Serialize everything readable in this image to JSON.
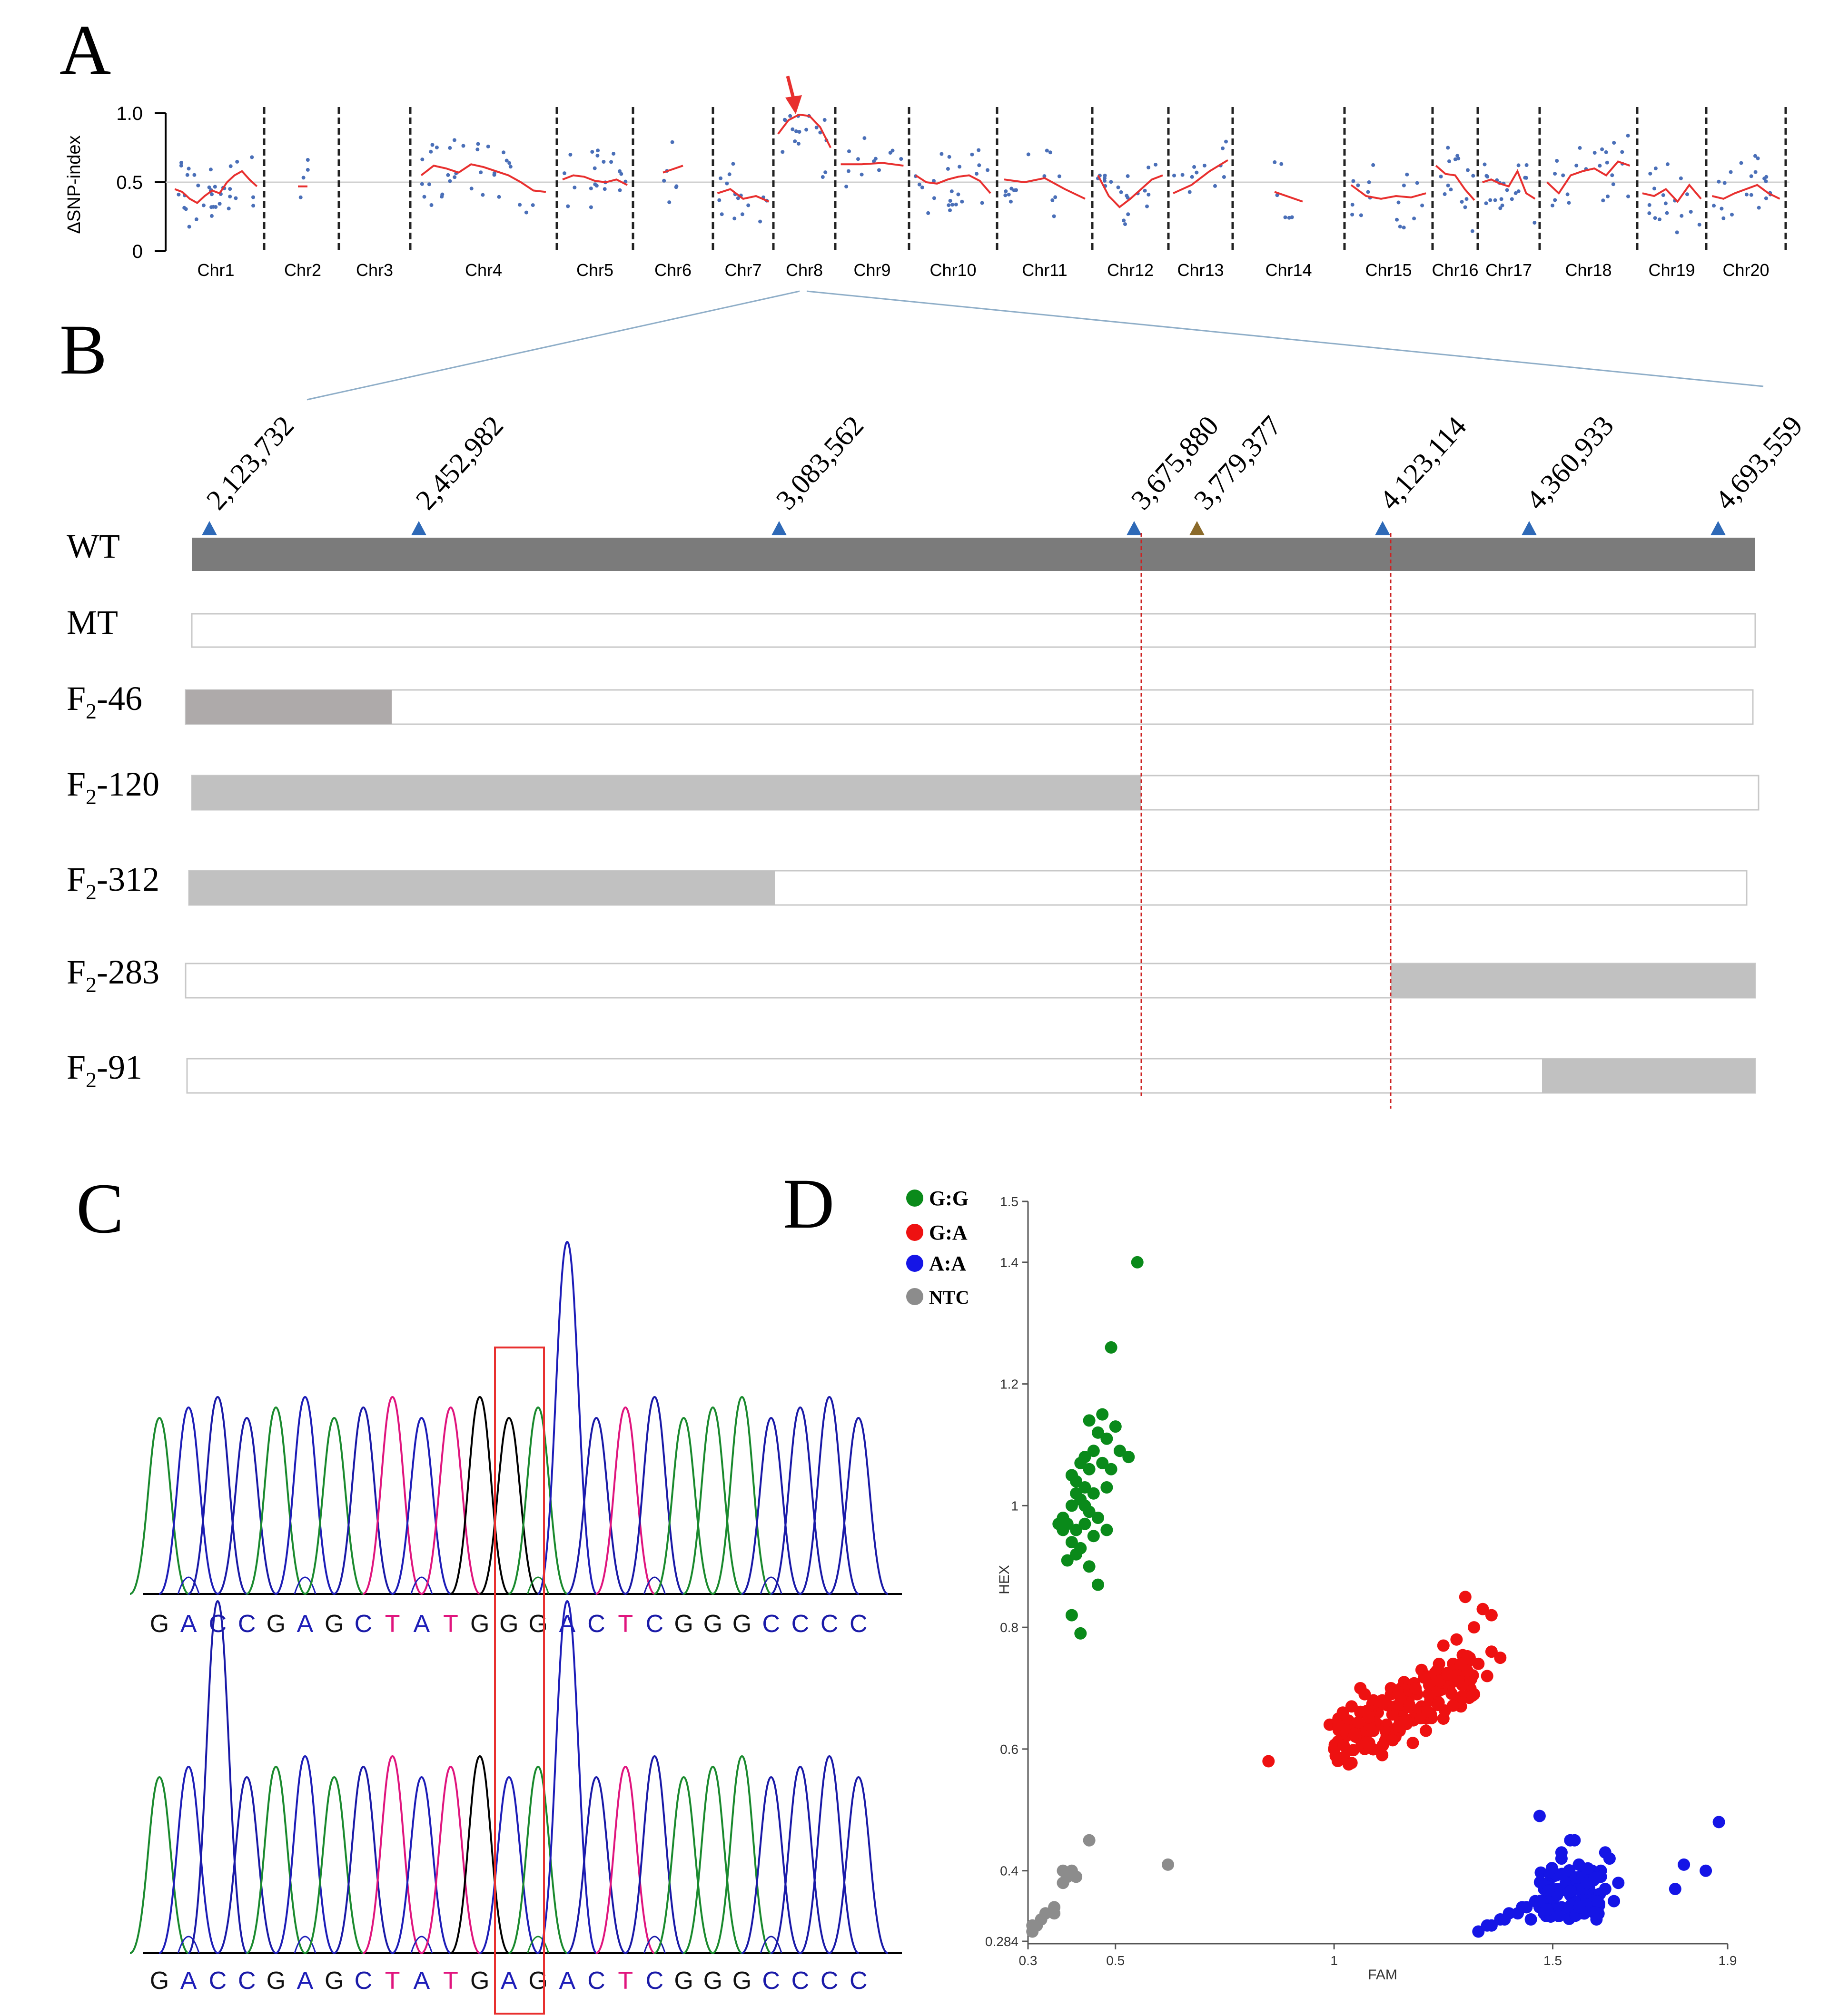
{
  "panels": {
    "a": "A",
    "b": "B",
    "c": "C",
    "d": "D"
  },
  "colors": {
    "trend": "#e8302f",
    "snp_dot": "#4a6fb8",
    "wt_bar": "#7b7b7b",
    "f2_46_bar": "#aeaaaa",
    "recomb_bar": "#c1c1c1",
    "marker": "#2e69b7",
    "marker_candidate": "#8b6a2a",
    "peak_G": "#1a8a2e",
    "peak_A": "#1d1db8",
    "peak_C": "#1a1aa8",
    "peak_T": "#e0157e",
    "peak_black": "#000000",
    "cluster_GG": "#0a8a1a",
    "cluster_GA": "#ee1111",
    "cluster_AA": "#1515e6",
    "cluster_NTC": "#8c8c8c"
  },
  "chart_data": [
    {
      "id": "A",
      "type": "line",
      "title": "",
      "ylabel": "ΔSNP-index",
      "xlabel": "",
      "ylim": [
        0,
        1.0
      ],
      "yticks": [
        "1.0",
        "0.5",
        "0"
      ],
      "chromosomes": [
        "Chr1",
        "Chr2",
        "Chr3",
        "Chr4",
        "Chr5",
        "Chr6",
        "Chr7",
        "Chr8",
        "Chr9",
        "Chr10",
        "Chr11",
        "Chr12",
        "Chr13",
        "Chr14",
        "Chr15",
        "Chr16",
        "Chr17",
        "Chr18",
        "Chr19",
        "Chr20"
      ],
      "reference_line": 0.5,
      "series": [
        {
          "name": "Chr1",
          "values": [
            0.45,
            0.43,
            0.38,
            0.35,
            0.4,
            0.44,
            0.42,
            0.5,
            0.55,
            0.58,
            0.52,
            0.47
          ]
        },
        {
          "name": "Chr2",
          "values": [
            0.47
          ]
        },
        {
          "name": "Chr4",
          "values": [
            0.55,
            0.62,
            0.6,
            0.57,
            0.63,
            0.61,
            0.58,
            0.55,
            0.5,
            0.44,
            0.43
          ]
        },
        {
          "name": "Chr5",
          "values": [
            0.52,
            0.55,
            0.54,
            0.51,
            0.5,
            0.52,
            0.48
          ]
        },
        {
          "name": "Chr6",
          "values": [
            0.57,
            0.62
          ]
        },
        {
          "name": "Chr7",
          "values": [
            0.42,
            0.45,
            0.38,
            0.4,
            0.36
          ]
        },
        {
          "name": "Chr8",
          "values": [
            0.85,
            0.95,
            0.99,
            0.98,
            0.9,
            0.75
          ]
        },
        {
          "name": "Chr9",
          "values": [
            0.63,
            0.63,
            0.64,
            0.62
          ]
        },
        {
          "name": "Chr10",
          "values": [
            0.55,
            0.5,
            0.49,
            0.52,
            0.54,
            0.55,
            0.51,
            0.42
          ]
        },
        {
          "name": "Chr11",
          "values": [
            0.52,
            0.5,
            0.53,
            0.45,
            0.38
          ]
        },
        {
          "name": "Chr12",
          "values": [
            0.55,
            0.4,
            0.32,
            0.38,
            0.45,
            0.52,
            0.55
          ]
        },
        {
          "name": "Chr13",
          "values": [
            0.42,
            0.48,
            0.58,
            0.66
          ]
        },
        {
          "name": "Chr14",
          "values": [
            0.43,
            0.36
          ]
        },
        {
          "name": "Chr15",
          "values": [
            0.48,
            0.4,
            0.38,
            0.4,
            0.39,
            0.42
          ]
        },
        {
          "name": "Chr16",
          "values": [
            0.62,
            0.56,
            0.55,
            0.45,
            0.37
          ]
        },
        {
          "name": "Chr17",
          "values": [
            0.5,
            0.52,
            0.49,
            0.47,
            0.58,
            0.42,
            0.38
          ]
        },
        {
          "name": "Chr18",
          "values": [
            0.5,
            0.42,
            0.55,
            0.58,
            0.6,
            0.55,
            0.65,
            0.62
          ]
        },
        {
          "name": "Chr19",
          "values": [
            0.42,
            0.4,
            0.45,
            0.36,
            0.48,
            0.38
          ]
        },
        {
          "name": "Chr20",
          "values": [
            0.4,
            0.38,
            0.42,
            0.45,
            0.48,
            0.42,
            0.38
          ]
        }
      ],
      "annotation": "arrow pointing to Chr8 peak"
    },
    {
      "id": "D",
      "type": "scatter",
      "xlabel": "FAM",
      "ylabel": "HEX",
      "xlim": [
        0.3,
        1.9
      ],
      "ylim": [
        0.284,
        1.5
      ],
      "xticks": [
        "0.3",
        "0.5",
        "1",
        "1.5",
        "1.9"
      ],
      "yticks": [
        "1.5",
        "1.4",
        "1.2",
        "1",
        "0.8",
        "0.6",
        "0.4",
        "0.284"
      ],
      "legend": [
        "G:G",
        "G:A",
        "A:A",
        "NTC"
      ],
      "legend_position": "top-left",
      "series": [
        {
          "name": "G:G",
          "x": [
            0.55,
            0.49,
            0.5,
            0.47,
            0.44,
            0.46,
            0.48,
            0.51,
            0.53,
            0.45,
            0.43,
            0.42,
            0.44,
            0.47,
            0.49,
            0.4,
            0.41,
            0.43,
            0.45,
            0.48,
            0.42,
            0.4,
            0.44,
            0.46,
            0.38,
            0.39,
            0.41,
            0.43,
            0.45,
            0.4,
            0.42,
            0.38,
            0.44,
            0.48,
            0.39,
            0.41,
            0.4,
            0.42,
            0.43,
            0.37,
            0.46,
            0.41,
            0.4
          ],
          "y": [
            1.4,
            1.26,
            1.13,
            1.15,
            1.14,
            1.12,
            1.11,
            1.09,
            1.08,
            1.09,
            1.08,
            1.07,
            1.06,
            1.07,
            1.06,
            1.05,
            1.04,
            1.03,
            1.02,
            1.03,
            1.01,
            1.0,
            0.99,
            0.98,
            0.98,
            0.97,
            0.96,
            0.97,
            0.95,
            0.94,
            0.93,
            0.96,
            0.9,
            0.96,
            0.91,
            0.92,
            0.82,
            0.79,
            1.0,
            0.97,
            0.87,
            1.02,
            1.05
          ]
        },
        {
          "name": "G:A",
          "x": [
            0.85,
            1.0,
            1.02,
            1.05,
            1.08,
            1.1,
            1.12,
            1.15,
            1.18,
            1.2,
            1.03,
            1.06,
            1.09,
            1.11,
            1.14,
            1.16,
            1.19,
            1.22,
            1.25,
            1.27,
            1.01,
            1.04,
            1.07,
            1.1,
            1.13,
            1.17,
            1.21,
            1.24,
            1.28,
            1.31,
            1.05,
            1.08,
            1.12,
            1.15,
            1.19,
            1.22,
            1.26,
            1.3,
            1.33,
            1.36,
            1.07,
            1.11,
            1.14,
            1.18,
            1.21,
            1.25,
            1.29,
            1.32,
            1.35,
            1.38,
            1.28,
            1.32,
            1.36,
            1.3,
            1.34,
            1.25,
            1.2,
            1.16,
            1.13,
            1.09,
            1.06,
            1.02,
            0.99
          ],
          "y": [
            0.58,
            0.6,
            0.62,
            0.63,
            0.61,
            0.64,
            0.62,
            0.66,
            0.65,
            0.67,
            0.64,
            0.66,
            0.63,
            0.68,
            0.67,
            0.7,
            0.69,
            0.71,
            0.7,
            0.72,
            0.65,
            0.67,
            0.69,
            0.66,
            0.7,
            0.68,
            0.72,
            0.74,
            0.73,
            0.75,
            0.62,
            0.61,
            0.64,
            0.63,
            0.66,
            0.68,
            0.7,
            0.71,
            0.74,
            0.76,
            0.6,
            0.59,
            0.62,
            0.61,
            0.63,
            0.65,
            0.67,
            0.69,
            0.72,
            0.75,
            0.78,
            0.8,
            0.82,
            0.85,
            0.83,
            0.77,
            0.73,
            0.71,
            0.69,
            0.68,
            0.7,
            0.66,
            0.64
          ]
        },
        {
          "name": "A:A",
          "x": [
            1.47,
            1.55,
            1.62,
            1.35,
            1.38,
            1.4,
            1.43,
            1.45,
            1.48,
            1.5,
            1.52,
            1.54,
            1.56,
            1.58,
            1.6,
            1.62,
            1.49,
            1.51,
            1.53,
            1.55,
            1.57,
            1.59,
            1.46,
            1.48,
            1.5,
            1.52,
            1.54,
            1.56,
            1.58,
            1.61,
            1.63,
            1.47,
            1.49,
            1.51,
            1.53,
            1.55,
            1.57,
            1.59,
            1.52,
            1.54,
            1.56,
            1.5,
            1.53,
            1.55,
            1.57,
            1.6,
            1.64,
            1.78,
            1.8,
            1.85,
            1.88,
            1.44,
            1.42,
            1.39,
            1.36,
            1.33,
            1.58,
            1.61,
            1.65,
            1.51
          ],
          "y": [
            0.49,
            0.45,
            0.43,
            0.31,
            0.32,
            0.33,
            0.34,
            0.32,
            0.33,
            0.35,
            0.34,
            0.36,
            0.35,
            0.34,
            0.36,
            0.37,
            0.38,
            0.37,
            0.39,
            0.38,
            0.36,
            0.4,
            0.35,
            0.37,
            0.4,
            0.42,
            0.39,
            0.41,
            0.38,
            0.4,
            0.42,
            0.34,
            0.36,
            0.33,
            0.37,
            0.34,
            0.38,
            0.36,
            0.43,
            0.45,
            0.41,
            0.39,
            0.38,
            0.35,
            0.33,
            0.32,
            0.35,
            0.37,
            0.41,
            0.4,
            0.48,
            0.34,
            0.33,
            0.32,
            0.31,
            0.3,
            0.4,
            0.39,
            0.38,
            0.36
          ]
        },
        {
          "name": "NTC",
          "x": [
            0.31,
            0.32,
            0.33,
            0.34,
            0.36,
            0.36,
            0.38,
            0.39,
            0.4,
            0.41,
            0.44,
            0.62,
            0.38,
            0.31
          ],
          "y": [
            0.3,
            0.31,
            0.32,
            0.33,
            0.33,
            0.34,
            0.38,
            0.39,
            0.4,
            0.39,
            0.45,
            0.41,
            0.4,
            0.31
          ]
        }
      ]
    }
  ],
  "markers": {
    "labels": [
      "2,123,732",
      "2,452,982",
      "3,083,562",
      "3,675,880",
      "3,779,377",
      "4,123,114",
      "4,360,933",
      "4,693,559"
    ],
    "positions": [
      2123732,
      2452982,
      3083562,
      3675880,
      3779377,
      4123114,
      4360933,
      4693559
    ],
    "candidate": "3,779,377"
  },
  "genotypes": {
    "rows": [
      {
        "prefix": "WT",
        "sub": "",
        "suffix": ""
      },
      {
        "prefix": "MT",
        "sub": "",
        "suffix": ""
      },
      {
        "prefix": "F",
        "sub": "2",
        "suffix": "-46"
      },
      {
        "prefix": "F",
        "sub": "2",
        "suffix": "-120"
      },
      {
        "prefix": "F",
        "sub": "2",
        "suffix": "-312"
      },
      {
        "prefix": "F",
        "sub": "2",
        "suffix": "-283"
      },
      {
        "prefix": "F",
        "sub": "2",
        "suffix": "-91"
      }
    ]
  },
  "chromatogram": {
    "top": {
      "sequence": "GACCGAGCTATGGGACTCGGGCCCC"
    },
    "bottom": {
      "sequence": "GACCGAGCTATGAGACTCGGGCCCC"
    },
    "highlight_index": 12
  }
}
